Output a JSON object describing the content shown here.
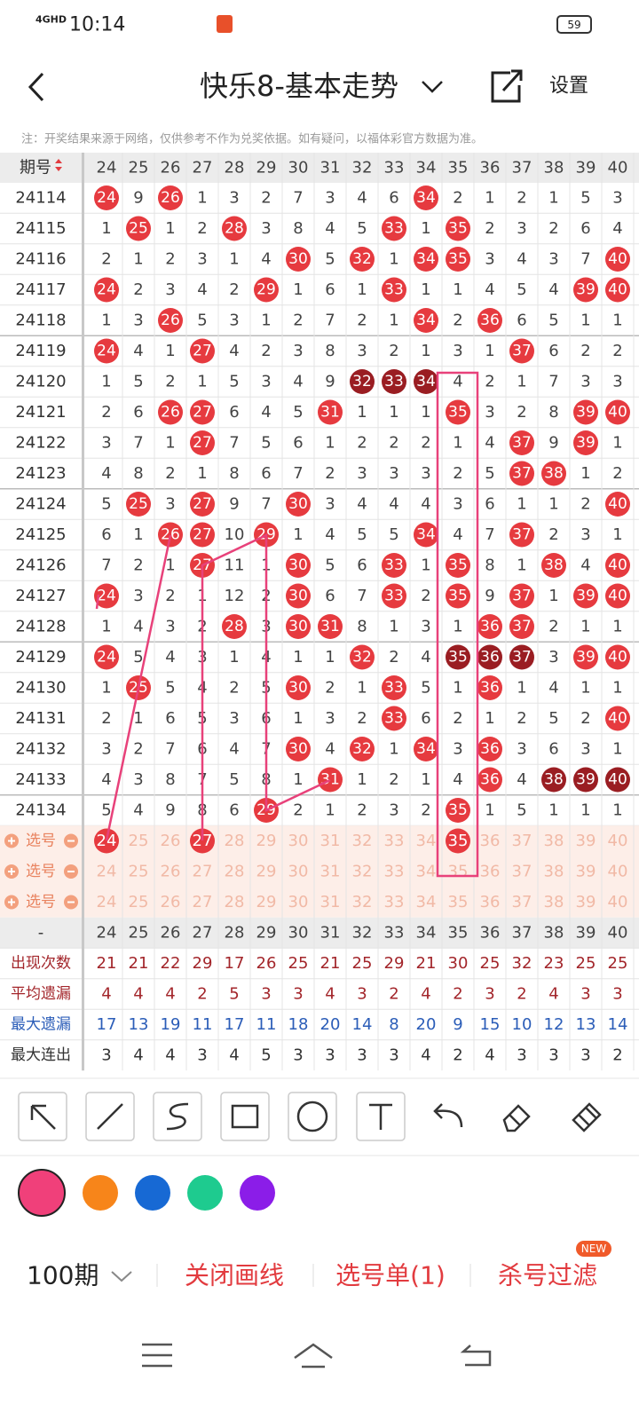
{
  "status_bar": {
    "network": "4GHD",
    "time": "10:14",
    "battery": "59"
  },
  "header": {
    "title": "快乐8-基本走势",
    "settings": "设置"
  },
  "note": "注：开奖结果来源于网络，仅供参考不作为兑奖依据。如有疑问，以福体彩官方数据为准。",
  "table": {
    "period_header": "期号",
    "columns": [
      24,
      25,
      26,
      27,
      28,
      29,
      30,
      31,
      32,
      33,
      34,
      35,
      36,
      37,
      38,
      39,
      40
    ],
    "hit_color": "#e63a3f",
    "dark_color": "#9a1d22",
    "rows": [
      {
        "period": "24114",
        "cells": [
          24,
          9,
          26,
          1,
          3,
          2,
          7,
          3,
          4,
          6,
          34,
          2,
          1,
          2,
          1,
          5,
          3
        ],
        "hits": [
          0,
          2,
          10
        ],
        "dark": []
      },
      {
        "period": "24115",
        "cells": [
          1,
          25,
          1,
          2,
          28,
          3,
          8,
          4,
          5,
          33,
          1,
          35,
          2,
          3,
          2,
          6,
          4
        ],
        "hits": [
          1,
          4,
          9,
          11
        ],
        "dark": []
      },
      {
        "period": "24116",
        "cells": [
          2,
          1,
          2,
          3,
          1,
          4,
          30,
          5,
          32,
          1,
          34,
          35,
          3,
          4,
          3,
          7,
          40
        ],
        "hits": [
          6,
          8,
          10,
          11,
          16
        ],
        "dark": []
      },
      {
        "period": "24117",
        "cells": [
          24,
          2,
          3,
          4,
          2,
          29,
          1,
          6,
          1,
          33,
          1,
          1,
          4,
          5,
          4,
          39,
          40
        ],
        "hits": [
          0,
          5,
          9,
          15,
          16
        ],
        "dark": []
      },
      {
        "period": "24118",
        "cells": [
          1,
          3,
          26,
          5,
          3,
          1,
          2,
          7,
          2,
          1,
          34,
          2,
          36,
          6,
          5,
          1,
          1
        ],
        "hits": [
          2,
          10,
          12
        ],
        "dark": []
      },
      {
        "period": "24119",
        "cells": [
          24,
          4,
          1,
          27,
          4,
          2,
          3,
          8,
          3,
          2,
          1,
          3,
          1,
          37,
          6,
          2,
          2
        ],
        "hits": [
          0,
          3,
          13
        ],
        "dark": []
      },
      {
        "period": "24120",
        "cells": [
          1,
          5,
          2,
          1,
          5,
          3,
          4,
          9,
          32,
          33,
          34,
          4,
          2,
          1,
          7,
          3,
          3
        ],
        "hits": [
          8,
          9,
          10
        ],
        "dark": [
          8,
          9,
          10
        ]
      },
      {
        "period": "24121",
        "cells": [
          2,
          6,
          26,
          27,
          6,
          4,
          5,
          31,
          1,
          1,
          1,
          35,
          3,
          2,
          8,
          39,
          40
        ],
        "hits": [
          2,
          3,
          7,
          11,
          15,
          16
        ],
        "dark": []
      },
      {
        "period": "24122",
        "cells": [
          3,
          7,
          1,
          27,
          7,
          5,
          6,
          1,
          2,
          2,
          2,
          1,
          4,
          37,
          9,
          39,
          1
        ],
        "hits": [
          3,
          13,
          15
        ],
        "dark": []
      },
      {
        "period": "24123",
        "cells": [
          4,
          8,
          2,
          1,
          8,
          6,
          7,
          2,
          3,
          3,
          3,
          2,
          5,
          37,
          38,
          1,
          2
        ],
        "hits": [
          13,
          14
        ],
        "dark": []
      },
      {
        "period": "24124",
        "cells": [
          5,
          25,
          3,
          27,
          9,
          7,
          30,
          3,
          4,
          4,
          4,
          3,
          6,
          1,
          1,
          2,
          40
        ],
        "hits": [
          1,
          3,
          6,
          16
        ],
        "dark": []
      },
      {
        "period": "24125",
        "cells": [
          6,
          1,
          26,
          27,
          10,
          29,
          1,
          4,
          5,
          5,
          34,
          4,
          7,
          37,
          2,
          3,
          1
        ],
        "hits": [
          2,
          3,
          5,
          10,
          13
        ],
        "dark": []
      },
      {
        "period": "24126",
        "cells": [
          7,
          2,
          1,
          27,
          11,
          1,
          30,
          5,
          6,
          33,
          1,
          35,
          8,
          1,
          38,
          4,
          40
        ],
        "hits": [
          3,
          6,
          9,
          11,
          14,
          16
        ],
        "dark": []
      },
      {
        "period": "24127",
        "cells": [
          24,
          3,
          2,
          1,
          12,
          2,
          30,
          6,
          7,
          33,
          2,
          35,
          9,
          37,
          1,
          39,
          40
        ],
        "hits": [
          0,
          6,
          9,
          11,
          13,
          15,
          16
        ],
        "dark": []
      },
      {
        "period": "24128",
        "cells": [
          1,
          4,
          3,
          2,
          28,
          3,
          30,
          31,
          8,
          1,
          3,
          1,
          36,
          37,
          2,
          1,
          1
        ],
        "hits": [
          4,
          6,
          7,
          12,
          13
        ],
        "dark": []
      },
      {
        "period": "24129",
        "cells": [
          24,
          5,
          4,
          3,
          1,
          4,
          1,
          1,
          32,
          2,
          4,
          35,
          36,
          37,
          3,
          39,
          40
        ],
        "hits": [
          0,
          8,
          11,
          12,
          13,
          15,
          16
        ],
        "dark": [
          11,
          12,
          13
        ]
      },
      {
        "period": "24130",
        "cells": [
          1,
          25,
          5,
          4,
          2,
          5,
          30,
          2,
          1,
          33,
          5,
          1,
          36,
          1,
          4,
          1,
          1
        ],
        "hits": [
          1,
          6,
          9,
          12
        ],
        "dark": []
      },
      {
        "period": "24131",
        "cells": [
          2,
          1,
          6,
          5,
          3,
          6,
          1,
          3,
          2,
          33,
          6,
          2,
          1,
          2,
          5,
          2,
          40
        ],
        "hits": [
          9,
          16
        ],
        "dark": []
      },
      {
        "period": "24132",
        "cells": [
          3,
          2,
          7,
          6,
          4,
          7,
          30,
          4,
          32,
          1,
          34,
          3,
          36,
          3,
          6,
          3,
          1
        ],
        "hits": [
          6,
          8,
          10,
          12
        ],
        "dark": []
      },
      {
        "period": "24133",
        "cells": [
          4,
          3,
          8,
          7,
          5,
          8,
          1,
          31,
          1,
          2,
          1,
          4,
          36,
          4,
          38,
          39,
          40
        ],
        "hits": [
          7,
          12,
          14,
          15,
          16
        ],
        "dark": [
          14,
          15,
          16
        ]
      },
      {
        "period": "24134",
        "cells": [
          5,
          4,
          9,
          8,
          6,
          29,
          2,
          1,
          2,
          3,
          2,
          35,
          1,
          5,
          1,
          1,
          1
        ],
        "hits": [
          5,
          11
        ],
        "dark": []
      }
    ],
    "selection_rows": [
      {
        "label": "选号",
        "selected": [
          0,
          3,
          11
        ]
      },
      {
        "label": "选号",
        "selected": []
      },
      {
        "label": "选号",
        "selected": []
      }
    ],
    "stats_header": "-",
    "stats": [
      {
        "label": "出现次数",
        "color": "#a3262b",
        "values": [
          21,
          21,
          22,
          29,
          17,
          26,
          25,
          21,
          25,
          29,
          21,
          30,
          25,
          32,
          23,
          25,
          25
        ]
      },
      {
        "label": "平均遗漏",
        "color": "#a3262b",
        "values": [
          4,
          4,
          4,
          2,
          5,
          3,
          3,
          4,
          3,
          2,
          4,
          2,
          3,
          2,
          4,
          3,
          3
        ]
      },
      {
        "label": "最大遗漏",
        "color": "#2b5db8",
        "values": [
          17,
          13,
          19,
          11,
          17,
          11,
          18,
          20,
          14,
          8,
          20,
          9,
          15,
          10,
          12,
          13,
          14
        ]
      },
      {
        "label": "最大连出",
        "color": "#333333",
        "values": [
          3,
          4,
          4,
          3,
          4,
          5,
          3,
          3,
          3,
          3,
          4,
          2,
          4,
          3,
          3,
          3,
          2
        ]
      }
    ]
  },
  "palette": [
    "#f0407a",
    "#f7851a",
    "#1769d4",
    "#1ecb8f",
    "#8b1de8"
  ],
  "bottom_bar": {
    "periods": "100期",
    "close_lines": "关闭画线",
    "pick_list": "选号单(1)",
    "filter": "杀号过滤",
    "badge": "NEW"
  }
}
